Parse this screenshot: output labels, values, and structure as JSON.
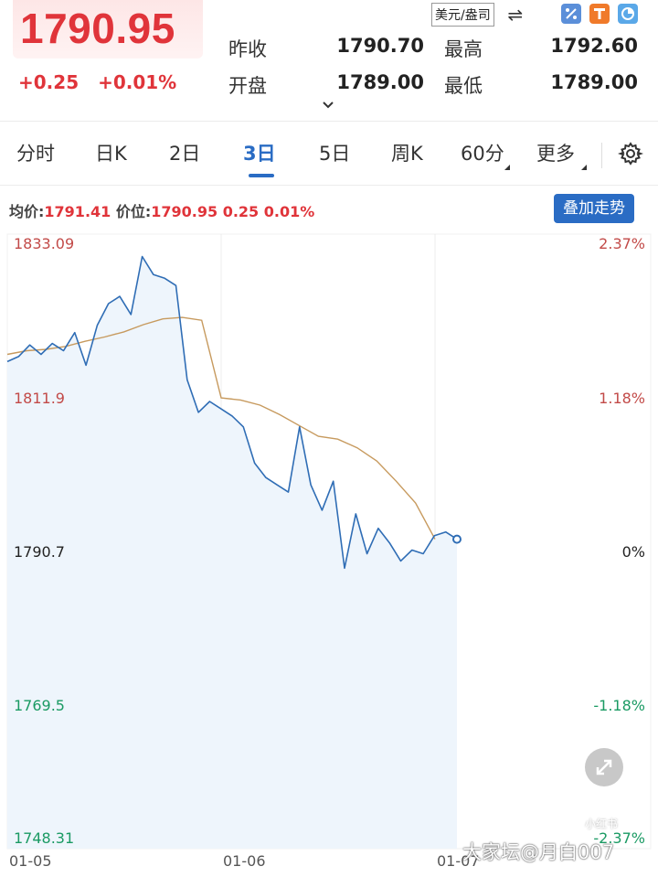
{
  "quote": {
    "price": "1790.95",
    "change_abs": "+0.25",
    "change_pct": "+0.01%",
    "prev_close_label": "昨收",
    "prev_close": "1790.70",
    "open_label": "开盘",
    "open": "1789.00",
    "high_label": "最高",
    "high": "1792.60",
    "low_label": "最低",
    "low": "1789.00",
    "accent_color": "#e0343a"
  },
  "toolbar": {
    "currency": "美元/盎司",
    "swap_icon": "⇌",
    "icons": [
      "percent-icon",
      "t-icon",
      "clock-icon"
    ]
  },
  "tabs": [
    {
      "label": "分时"
    },
    {
      "label": "日K"
    },
    {
      "label": "2日"
    },
    {
      "label": "3日"
    },
    {
      "label": "5日"
    },
    {
      "label": "周K"
    },
    {
      "label": "60分"
    },
    {
      "label": "更多"
    }
  ],
  "active_tab": "3日",
  "info": {
    "avg_label": "均价:",
    "avg_value": "1791.41",
    "price_label": "价位:",
    "price_value": "1790.95 0.25 0.01%",
    "overlay_button": "叠加走势"
  },
  "chart_data": {
    "type": "line",
    "y_ticks_left": [
      "1833.09",
      "1811.9",
      "1790.7",
      "1769.5",
      "1748.31"
    ],
    "y_ticks_right": [
      "2.37%",
      "1.18%",
      "0%",
      "-1.18%",
      "-2.37%"
    ],
    "x_ticks": [
      "01-05",
      "01-06",
      "01-07"
    ],
    "ylim": [
      1748.31,
      1833.09
    ],
    "reference": 1790.7,
    "series": [
      {
        "color": "#2f6db5",
        "values": [
          1815.5,
          1816.2,
          1817.8,
          1816.5,
          1818.0,
          1817.0,
          1819.5,
          1815.0,
          1820.5,
          1823.5,
          1824.5,
          1822.0,
          1830.0,
          1827.5,
          1827.0,
          1826.0,
          1813.0,
          1808.5,
          1810.0,
          1809.0,
          1808.0,
          1806.5,
          1801.5,
          1799.5,
          1798.5,
          1797.5,
          1806.5,
          1798.5,
          1795.0,
          1799.0,
          1787.0,
          1794.5,
          1789.0,
          1792.5,
          1790.5,
          1788.0,
          1789.5,
          1789.0,
          1791.5,
          1792.0,
          1791.0
        ]
      },
      {
        "color": "#c79a5e",
        "values": [
          1816.5,
          1817.0,
          1817.2,
          1817.6,
          1818.3,
          1818.9,
          1819.6,
          1820.6,
          1821.4,
          1821.6,
          1821.2,
          1810.5,
          1810.2,
          1809.5,
          1808.2,
          1806.7,
          1805.2,
          1804.8,
          1803.6,
          1801.8,
          1799.0,
          1796.0,
          1791.0
        ]
      }
    ],
    "grid": true
  },
  "watermark": "大家坛@月白007",
  "watermark_logo": "小红书"
}
